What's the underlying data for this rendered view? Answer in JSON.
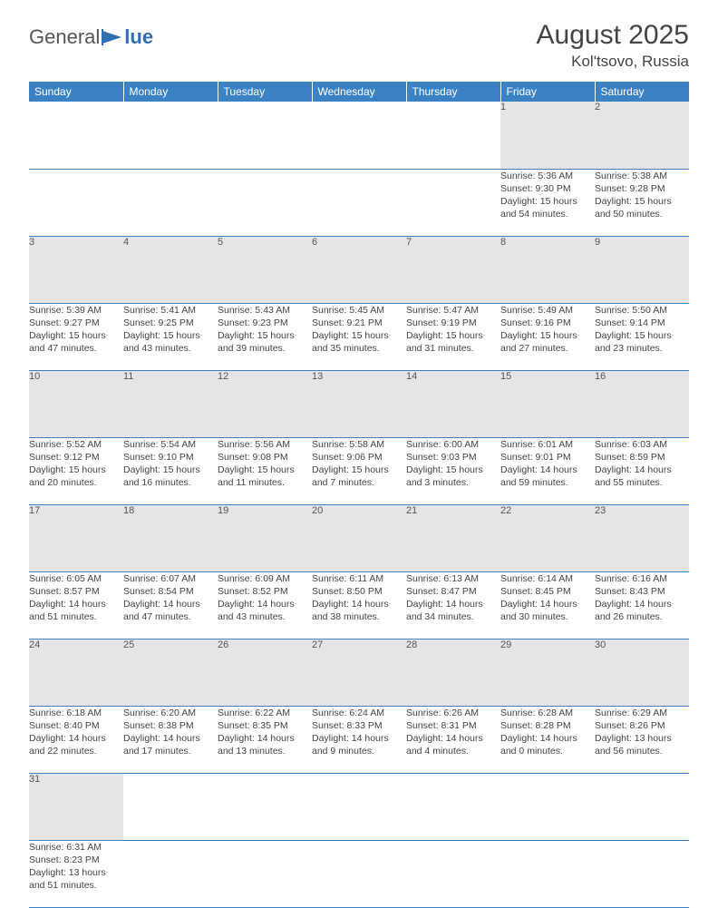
{
  "logo": {
    "text_left": "General",
    "text_right": "lue"
  },
  "header": {
    "month_title": "August 2025",
    "location": "Kol'tsovo, Russia"
  },
  "colors": {
    "header_bar": "#3b82c4",
    "header_text": "#ffffff",
    "daynum_bg": "#e5e5e5",
    "rule": "#3b82c4",
    "body_text": "#444444"
  },
  "day_headers": [
    "Sunday",
    "Monday",
    "Tuesday",
    "Wednesday",
    "Thursday",
    "Friday",
    "Saturday"
  ],
  "weeks": [
    [
      null,
      null,
      null,
      null,
      null,
      {
        "n": "1",
        "sr": "5:36 AM",
        "ss": "9:30 PM",
        "dl": "15 hours and 54 minutes."
      },
      {
        "n": "2",
        "sr": "5:38 AM",
        "ss": "9:28 PM",
        "dl": "15 hours and 50 minutes."
      }
    ],
    [
      {
        "n": "3",
        "sr": "5:39 AM",
        "ss": "9:27 PM",
        "dl": "15 hours and 47 minutes."
      },
      {
        "n": "4",
        "sr": "5:41 AM",
        "ss": "9:25 PM",
        "dl": "15 hours and 43 minutes."
      },
      {
        "n": "5",
        "sr": "5:43 AM",
        "ss": "9:23 PM",
        "dl": "15 hours and 39 minutes."
      },
      {
        "n": "6",
        "sr": "5:45 AM",
        "ss": "9:21 PM",
        "dl": "15 hours and 35 minutes."
      },
      {
        "n": "7",
        "sr": "5:47 AM",
        "ss": "9:19 PM",
        "dl": "15 hours and 31 minutes."
      },
      {
        "n": "8",
        "sr": "5:49 AM",
        "ss": "9:16 PM",
        "dl": "15 hours and 27 minutes."
      },
      {
        "n": "9",
        "sr": "5:50 AM",
        "ss": "9:14 PM",
        "dl": "15 hours and 23 minutes."
      }
    ],
    [
      {
        "n": "10",
        "sr": "5:52 AM",
        "ss": "9:12 PM",
        "dl": "15 hours and 20 minutes."
      },
      {
        "n": "11",
        "sr": "5:54 AM",
        "ss": "9:10 PM",
        "dl": "15 hours and 16 minutes."
      },
      {
        "n": "12",
        "sr": "5:56 AM",
        "ss": "9:08 PM",
        "dl": "15 hours and 11 minutes."
      },
      {
        "n": "13",
        "sr": "5:58 AM",
        "ss": "9:06 PM",
        "dl": "15 hours and 7 minutes."
      },
      {
        "n": "14",
        "sr": "6:00 AM",
        "ss": "9:03 PM",
        "dl": "15 hours and 3 minutes."
      },
      {
        "n": "15",
        "sr": "6:01 AM",
        "ss": "9:01 PM",
        "dl": "14 hours and 59 minutes."
      },
      {
        "n": "16",
        "sr": "6:03 AM",
        "ss": "8:59 PM",
        "dl": "14 hours and 55 minutes."
      }
    ],
    [
      {
        "n": "17",
        "sr": "6:05 AM",
        "ss": "8:57 PM",
        "dl": "14 hours and 51 minutes."
      },
      {
        "n": "18",
        "sr": "6:07 AM",
        "ss": "8:54 PM",
        "dl": "14 hours and 47 minutes."
      },
      {
        "n": "19",
        "sr": "6:09 AM",
        "ss": "8:52 PM",
        "dl": "14 hours and 43 minutes."
      },
      {
        "n": "20",
        "sr": "6:11 AM",
        "ss": "8:50 PM",
        "dl": "14 hours and 38 minutes."
      },
      {
        "n": "21",
        "sr": "6:13 AM",
        "ss": "8:47 PM",
        "dl": "14 hours and 34 minutes."
      },
      {
        "n": "22",
        "sr": "6:14 AM",
        "ss": "8:45 PM",
        "dl": "14 hours and 30 minutes."
      },
      {
        "n": "23",
        "sr": "6:16 AM",
        "ss": "8:43 PM",
        "dl": "14 hours and 26 minutes."
      }
    ],
    [
      {
        "n": "24",
        "sr": "6:18 AM",
        "ss": "8:40 PM",
        "dl": "14 hours and 22 minutes."
      },
      {
        "n": "25",
        "sr": "6:20 AM",
        "ss": "8:38 PM",
        "dl": "14 hours and 17 minutes."
      },
      {
        "n": "26",
        "sr": "6:22 AM",
        "ss": "8:35 PM",
        "dl": "14 hours and 13 minutes."
      },
      {
        "n": "27",
        "sr": "6:24 AM",
        "ss": "8:33 PM",
        "dl": "14 hours and 9 minutes."
      },
      {
        "n": "28",
        "sr": "6:26 AM",
        "ss": "8:31 PM",
        "dl": "14 hours and 4 minutes."
      },
      {
        "n": "29",
        "sr": "6:28 AM",
        "ss": "8:28 PM",
        "dl": "14 hours and 0 minutes."
      },
      {
        "n": "30",
        "sr": "6:29 AM",
        "ss": "8:26 PM",
        "dl": "13 hours and 56 minutes."
      }
    ],
    [
      {
        "n": "31",
        "sr": "6:31 AM",
        "ss": "8:23 PM",
        "dl": "13 hours and 51 minutes."
      },
      null,
      null,
      null,
      null,
      null,
      null
    ]
  ],
  "labels": {
    "sunrise": "Sunrise:",
    "sunset": "Sunset:",
    "daylight": "Daylight:"
  }
}
